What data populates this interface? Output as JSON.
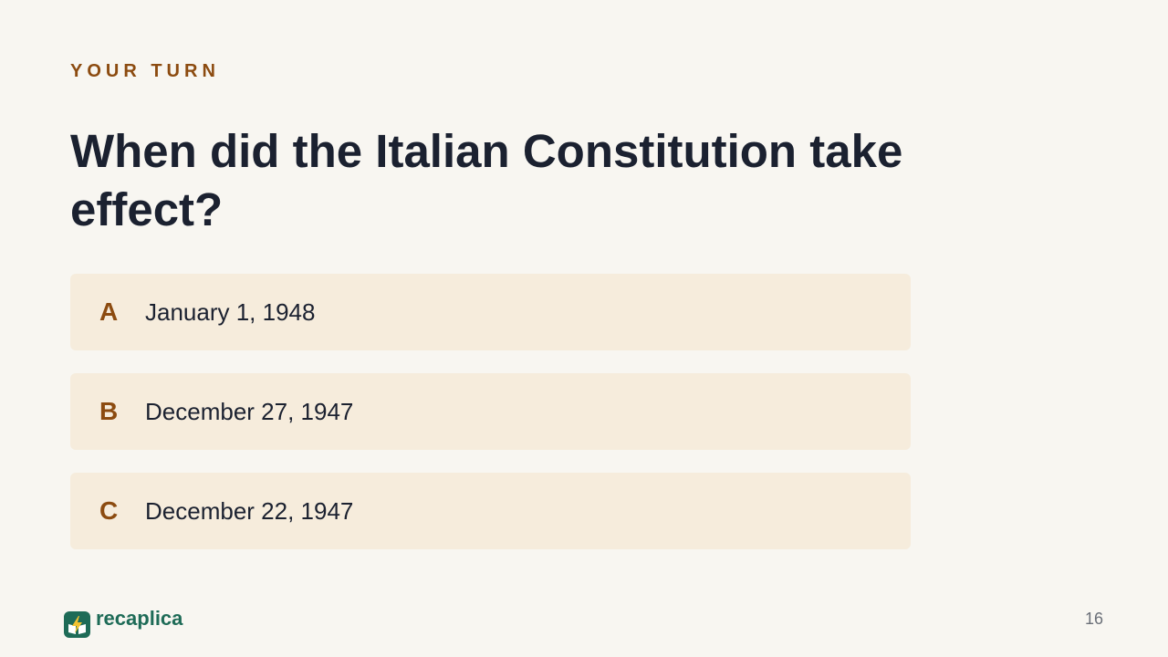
{
  "slide": {
    "eyebrow": "YOUR TURN",
    "question": "When did the Italian Constitution take effect?",
    "options": [
      {
        "letter": "A",
        "text": "January 1, 1948"
      },
      {
        "letter": "B",
        "text": "December 27, 1947"
      },
      {
        "letter": "C",
        "text": "December 22, 1947"
      }
    ]
  },
  "footer": {
    "brand": "recaplica",
    "logo_icon": "lightning-book-icon",
    "page_number": "16"
  },
  "colors": {
    "background": "#f8f6f1",
    "accent": "#8c4b10",
    "heading": "#1b2130",
    "option_background": "#f6ecdc",
    "brand": "#1e6b57",
    "bolt": "#f2c230"
  }
}
